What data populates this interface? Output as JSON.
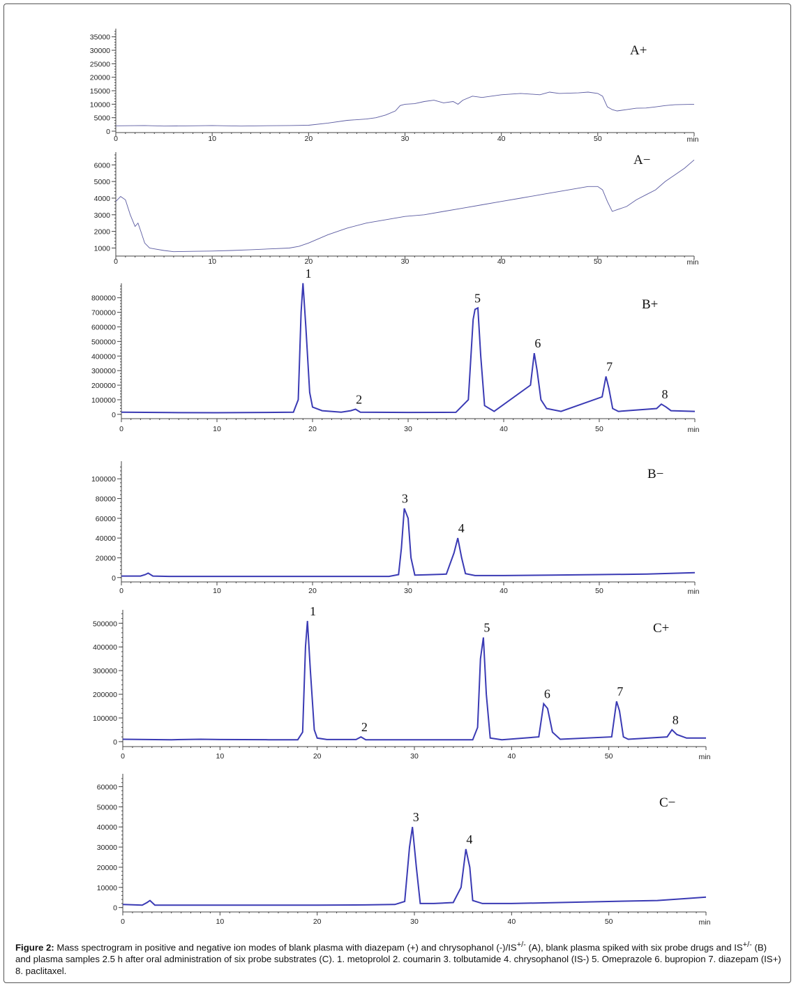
{
  "chart_data": [
    {
      "type": "line",
      "panel_label": "A+",
      "xlabel": "min",
      "xlim": [
        0,
        60
      ],
      "x_ticks": [
        0,
        10,
        20,
        30,
        40,
        50
      ],
      "ylim": [
        0,
        37000
      ],
      "y_ticks": [
        0,
        5000,
        10000,
        15000,
        20000,
        25000,
        30000,
        35000
      ],
      "series": [
        {
          "name": "A+",
          "x": [
            0,
            3,
            5,
            8,
            10,
            13,
            15,
            18,
            20,
            22,
            24,
            26,
            27,
            28,
            29,
            29.5,
            30,
            31,
            32,
            33,
            34,
            35,
            35.5,
            36,
            37,
            38,
            40,
            42,
            44,
            45,
            46,
            48,
            49,
            50,
            50.5,
            51,
            51.5,
            52,
            53,
            54,
            55,
            56,
            57,
            58,
            60
          ],
          "values": [
            2000,
            2100,
            1900,
            2000,
            2100,
            1900,
            2000,
            2100,
            2200,
            3000,
            4000,
            4500,
            5000,
            6000,
            7500,
            9500,
            10000,
            10200,
            11000,
            11500,
            10500,
            11000,
            10000,
            11500,
            13000,
            12500,
            13500,
            14000,
            13500,
            14500,
            14000,
            14200,
            14500,
            14000,
            13000,
            9000,
            8000,
            7500,
            8000,
            8500,
            8600,
            9000,
            9500,
            9800,
            10000
          ]
        }
      ]
    },
    {
      "type": "line",
      "panel_label": "A−",
      "xlabel": "min",
      "xlim": [
        0,
        60
      ],
      "x_ticks": [
        0,
        10,
        20,
        30,
        40,
        50
      ],
      "ylim": [
        600,
        6600
      ],
      "y_ticks": [
        1000,
        2000,
        3000,
        4000,
        5000,
        6000
      ],
      "series": [
        {
          "name": "A−",
          "x": [
            0,
            0.5,
            1,
            1.5,
            2,
            2.3,
            2.6,
            3,
            3.5,
            4,
            5,
            6,
            8,
            10,
            12,
            14,
            16,
            18,
            19,
            20,
            22,
            24,
            26,
            28,
            30,
            32,
            34,
            36,
            38,
            40,
            42,
            44,
            46,
            48,
            49,
            50,
            50.5,
            51,
            51.5,
            52,
            53,
            54,
            55,
            56,
            57,
            58,
            59,
            60
          ],
          "values": [
            3800,
            4100,
            3900,
            3000,
            2300,
            2500,
            2000,
            1300,
            1000,
            950,
            850,
            780,
            800,
            820,
            850,
            900,
            950,
            1000,
            1100,
            1300,
            1800,
            2200,
            2500,
            2700,
            2900,
            3000,
            3200,
            3400,
            3600,
            3800,
            4000,
            4200,
            4400,
            4600,
            4700,
            4700,
            4500,
            3800,
            3200,
            3300,
            3500,
            3900,
            4200,
            4500,
            5000,
            5400,
            5800,
            6300
          ]
        }
      ]
    },
    {
      "type": "line",
      "panel_label": "B+",
      "xlabel": "min",
      "xlim": [
        0,
        60
      ],
      "x_ticks": [
        0,
        10,
        20,
        30,
        40,
        50
      ],
      "ylim": [
        -20000,
        880000
      ],
      "y_ticks": [
        0,
        100000,
        200000,
        300000,
        400000,
        500000,
        600000,
        700000,
        800000
      ],
      "series": [
        {
          "name": "B+",
          "x": [
            0,
            5,
            10,
            15,
            18,
            18.5,
            18.8,
            19,
            19.3,
            19.7,
            20,
            21,
            23,
            24,
            24.5,
            25,
            30,
            35,
            36.3,
            36.8,
            37,
            37.3,
            37.6,
            38,
            39,
            42.8,
            43.2,
            43.5,
            43.9,
            44.5,
            46,
            50.3,
            50.7,
            51,
            51.4,
            52,
            56,
            56.5,
            57,
            57.5,
            60
          ],
          "values": [
            15000,
            12000,
            11000,
            13000,
            15000,
            100000,
            700000,
            900000,
            600000,
            150000,
            50000,
            25000,
            15000,
            25000,
            35000,
            15000,
            13000,
            14000,
            100000,
            650000,
            720000,
            730000,
            400000,
            60000,
            20000,
            200000,
            420000,
            300000,
            100000,
            40000,
            20000,
            120000,
            260000,
            180000,
            40000,
            20000,
            40000,
            70000,
            50000,
            25000,
            20000
          ]
        }
      ],
      "peak_labels": [
        {
          "text": "1",
          "x": 19.2,
          "y": 900000
        },
        {
          "text": "2",
          "x": 24.5,
          "y": 35000
        },
        {
          "text": "5",
          "x": 36.9,
          "y": 730000
        },
        {
          "text": "6",
          "x": 43.2,
          "y": 420000
        },
        {
          "text": "7",
          "x": 50.7,
          "y": 260000
        },
        {
          "text": "8",
          "x": 56.5,
          "y": 70000
        }
      ]
    },
    {
      "type": "line",
      "panel_label": "B−",
      "xlabel": "min",
      "xlim": [
        0,
        60
      ],
      "x_ticks": [
        0,
        10,
        20,
        30,
        40,
        50
      ],
      "ylim": [
        -3000,
        115000
      ],
      "y_ticks": [
        0,
        20000,
        40000,
        60000,
        80000,
        100000
      ],
      "series": [
        {
          "name": "B−",
          "x": [
            0,
            2,
            2.5,
            2.8,
            3.3,
            5,
            10,
            20,
            28,
            29,
            29.3,
            29.6,
            30,
            30.3,
            30.7,
            32,
            34,
            34.8,
            35.2,
            35.6,
            36,
            37,
            40,
            45,
            50,
            55,
            60
          ],
          "values": [
            1500,
            1500,
            3000,
            4500,
            1500,
            1200,
            1200,
            1200,
            1200,
            3000,
            30000,
            70000,
            60000,
            20000,
            2500,
            2800,
            3500,
            25000,
            40000,
            20000,
            4000,
            2000,
            2000,
            2500,
            3000,
            3500,
            5000
          ]
        }
      ],
      "peak_labels": [
        {
          "text": "3",
          "x": 29.3,
          "y": 70000
        },
        {
          "text": "4",
          "x": 35.2,
          "y": 40000
        }
      ]
    },
    {
      "type": "line",
      "panel_label": "C+",
      "xlabel": "min",
      "xlim": [
        0,
        60
      ],
      "x_ticks": [
        0,
        10,
        20,
        30,
        40,
        50
      ],
      "ylim": [
        -15000,
        545000
      ],
      "y_ticks": [
        0,
        100000,
        200000,
        300000,
        400000,
        500000
      ],
      "series": [
        {
          "name": "C+",
          "x": [
            0,
            5,
            8,
            10,
            15,
            18,
            18.5,
            18.8,
            19,
            19.3,
            19.7,
            20,
            21,
            24,
            24.5,
            25,
            30,
            36,
            36.5,
            36.8,
            37.1,
            37.4,
            37.8,
            39,
            42.8,
            43.3,
            43.7,
            44.2,
            45,
            50.3,
            50.8,
            51.1,
            51.5,
            52,
            56,
            56.5,
            57,
            58,
            60
          ],
          "values": [
            10000,
            8000,
            10000,
            9000,
            8000,
            8000,
            40000,
            400000,
            510000,
            300000,
            50000,
            15000,
            9000,
            9000,
            20000,
            8000,
            8000,
            8000,
            60000,
            350000,
            440000,
            200000,
            15000,
            8000,
            20000,
            160000,
            140000,
            40000,
            10000,
            20000,
            170000,
            130000,
            20000,
            10000,
            20000,
            50000,
            30000,
            15000,
            15000
          ]
        }
      ],
      "peak_labels": [
        {
          "text": "1",
          "x": 19.2,
          "y": 510000
        },
        {
          "text": "2",
          "x": 24.5,
          "y": 20000
        },
        {
          "text": "5",
          "x": 37.1,
          "y": 440000
        },
        {
          "text": "6",
          "x": 43.3,
          "y": 160000
        },
        {
          "text": "7",
          "x": 50.8,
          "y": 170000
        },
        {
          "text": "8",
          "x": 56.5,
          "y": 50000
        }
      ]
    },
    {
      "type": "line",
      "panel_label": "C−",
      "xlabel": "min",
      "xlim": [
        0,
        60
      ],
      "x_ticks": [
        0,
        10,
        20,
        30,
        40,
        50
      ],
      "ylim": [
        -1500,
        65000
      ],
      "y_ticks": [
        0,
        10000,
        20000,
        30000,
        40000,
        50000,
        60000
      ],
      "series": [
        {
          "name": "C−",
          "x": [
            0,
            2,
            2.5,
            2.8,
            3.3,
            5,
            10,
            15,
            20,
            25,
            28,
            29,
            29.5,
            29.8,
            30.2,
            30.6,
            32,
            34,
            34.8,
            35.3,
            35.7,
            36,
            37,
            40,
            45,
            50,
            55,
            58,
            60
          ],
          "values": [
            1500,
            1200,
            2500,
            3500,
            1200,
            1200,
            1200,
            1200,
            1200,
            1300,
            1500,
            3000,
            30000,
            40000,
            20000,
            2000,
            2000,
            2500,
            10000,
            29000,
            20000,
            3500,
            2000,
            2000,
            2500,
            3000,
            3500,
            4500,
            5200
          ]
        }
      ],
      "peak_labels": [
        {
          "text": "3",
          "x": 29.8,
          "y": 40000
        },
        {
          "text": "4",
          "x": 35.3,
          "y": 29000
        }
      ]
    }
  ],
  "caption": {
    "label": "Figure 2:",
    "part1": " Mass spectrogram in positive and negative ion modes of blank plasma with diazepam (+) and chrysophanol (-)/IS",
    "sup1": "+/-",
    "part2": " (A), blank plasma spiked with six probe drugs and IS",
    "sup2": "+/-",
    "part3": " (B) and plasma samples 2.5 h after oral administration of six probe substrates (C). 1. metoprolol 2. coumarin 3. tolbutamide 4. chrysophanol (IS-) 5. Omeprazole 6. bupropion 7. diazepam (IS+) 8. paclitaxel."
  }
}
